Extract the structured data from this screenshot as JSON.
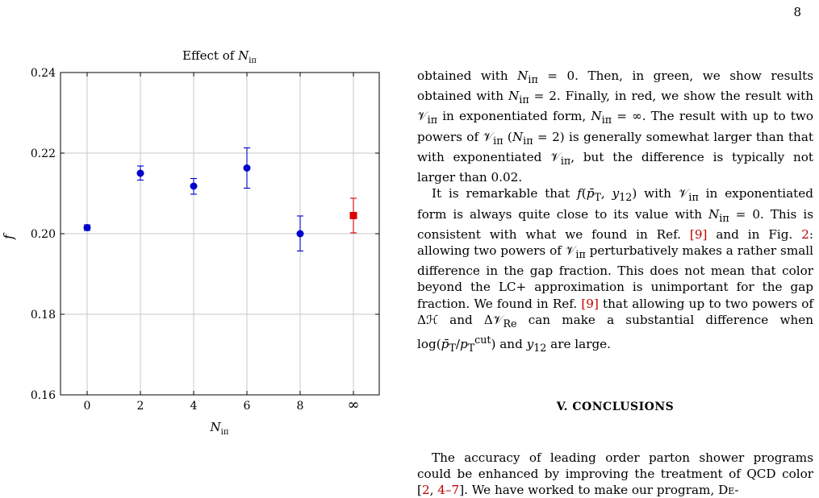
{
  "page": {
    "number": "8"
  },
  "figure": {
    "chart_data": {
      "type": "scatter",
      "title": "Effect of N_iπ",
      "xlabel": "N_iπ",
      "ylabel": "f",
      "categories": [
        "0",
        "2",
        "4",
        "6",
        "8",
        "∞"
      ],
      "ylim": [
        0.16,
        0.24
      ],
      "yticks": [
        "0.16",
        "0.18",
        "0.20",
        "0.22",
        "0.24"
      ],
      "grid": true,
      "points": [
        {
          "x": "0",
          "y": 0.2015,
          "err_low": 0.2008,
          "err_high": 0.2022,
          "marker": "circle",
          "color": "#0000cc"
        },
        {
          "x": "2",
          "y": 0.215,
          "err_low": 0.2133,
          "err_high": 0.2168,
          "marker": "circle",
          "color": "#0000cc"
        },
        {
          "x": "4",
          "y": 0.2118,
          "err_low": 0.2098,
          "err_high": 0.2137,
          "marker": "circle",
          "color": "#0000cc"
        },
        {
          "x": "6",
          "y": 0.2163,
          "err_low": 0.2113,
          "err_high": 0.2213,
          "marker": "circle",
          "color": "#0000cc"
        },
        {
          "x": "8",
          "y": 0.2,
          "err_low": 0.1957,
          "err_high": 0.2044,
          "marker": "circle",
          "color": "#0000cc"
        },
        {
          "x": "∞",
          "y": 0.2045,
          "err_low": 0.2002,
          "err_high": 0.2088,
          "marker": "square",
          "color": "#dd0000"
        }
      ]
    }
  },
  "text": {
    "p1": "obtained with N_iπ = 0. Then, in green, we show results obtained with N_iπ = 2. Finally, in red, we show the result with V_iπ in exponentiated form, N_iπ = ∞. The result with up to two powers of V_iπ (N_iπ = 2) is generally somewhat larger than that with exponentiated V_iπ, but the difference is typically not larger than 0.02.",
    "p2": "It is remarkable that f(p̄_T, y_12) with V_iπ in exponentiated form is always quite close to its value with N_iπ = 0. This is consistent with what we found in Ref. [9] and in Fig. 2: allowing two powers of V_iπ perturbatively makes a rather small difference in the gap fraction. This does not mean that color beyond the LC+ approximation is unimportant for the gap fraction. We found in Ref. [9] that allowing up to two powers of ΔH and ΔV_Re can make a substantial difference when log(p̄_T/p_T^cut) and y_12 are large.",
    "section_heading": "V.   CONCLUSIONS",
    "p3": "The accuracy of leading order parton shower programs could be enhanced by improving the treatment of QCD color [2, 4–7]. We have worked to make our program, DE-"
  }
}
